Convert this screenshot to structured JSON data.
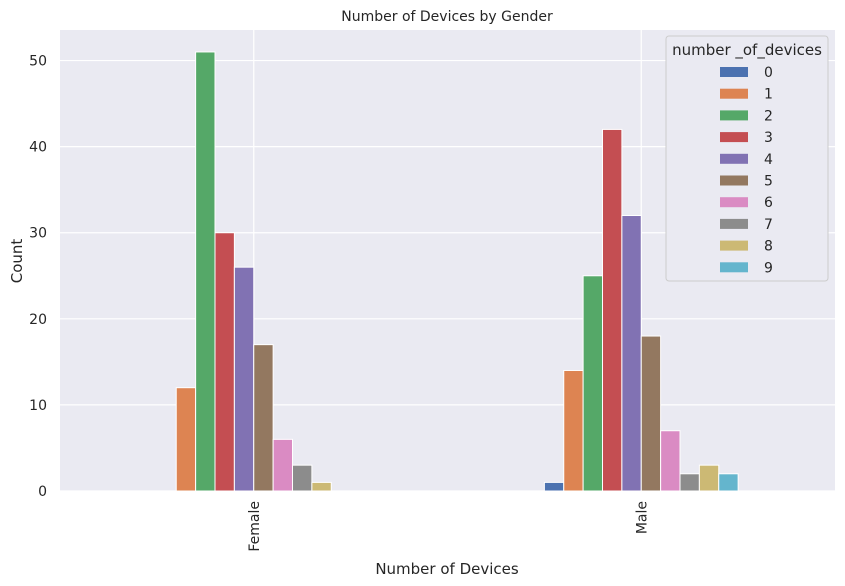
{
  "chart_data": {
    "type": "bar",
    "title": "Number of Devices by Gender",
    "xlabel": "Number of Devices",
    "ylabel": "Count",
    "categories": [
      "Female",
      "Male"
    ],
    "ylim": [
      0,
      53.55
    ],
    "yticks": [
      0,
      10,
      20,
      30,
      40,
      50
    ],
    "grid": true,
    "legend": {
      "title": "number _of_devices",
      "placement": "top-right"
    },
    "series": [
      {
        "name": "0",
        "color": "#4c72b0",
        "values": [
          0,
          1
        ]
      },
      {
        "name": "1",
        "color": "#dd8452",
        "values": [
          12,
          14
        ]
      },
      {
        "name": "2",
        "color": "#55a868",
        "values": [
          51,
          25
        ]
      },
      {
        "name": "3",
        "color": "#c44e52",
        "values": [
          30,
          42
        ]
      },
      {
        "name": "4",
        "color": "#8172b3",
        "values": [
          26,
          32
        ]
      },
      {
        "name": "5",
        "color": "#937860",
        "values": [
          17,
          18
        ]
      },
      {
        "name": "6",
        "color": "#da8bc3",
        "values": [
          6,
          7
        ]
      },
      {
        "name": "7",
        "color": "#8c8c8c",
        "values": [
          3,
          2
        ]
      },
      {
        "name": "8",
        "color": "#ccb974",
        "values": [
          1,
          3
        ]
      },
      {
        "name": "9",
        "color": "#64b5cd",
        "values": [
          0,
          2
        ]
      }
    ]
  }
}
